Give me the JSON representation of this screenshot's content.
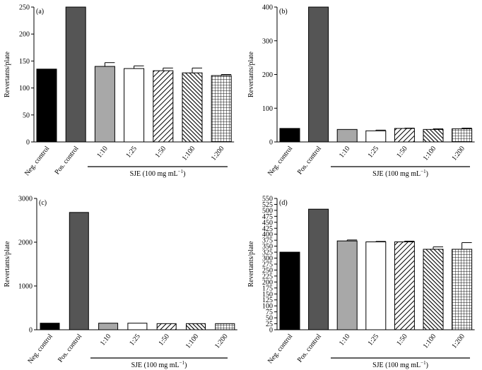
{
  "chart_data": [
    {
      "type": "bar",
      "panel_label": "(a)",
      "ylabel": "Revertants/plate",
      "ylim": [
        0,
        250
      ],
      "yticks": [
        0,
        50,
        100,
        150,
        200,
        250
      ],
      "categories": [
        "Neg. control",
        "Pos. control",
        "1:10",
        "1:25",
        "1:50",
        "1:100",
        "1:200"
      ],
      "values": [
        135,
        251,
        140,
        136,
        132,
        128,
        123
      ],
      "errors": [
        0,
        0,
        7,
        5,
        5,
        9,
        2
      ],
      "group_label": "SJE (100 mg mL",
      "group_label_sup": "−1",
      "group_label_end": ")"
    },
    {
      "type": "bar",
      "panel_label": "(b)",
      "ylabel": "Revertants/plate",
      "ylim": [
        0,
        400
      ],
      "yticks": [
        0,
        100,
        200,
        300,
        400
      ],
      "categories": [
        "Neg. control",
        "Pos. control",
        "1:10",
        "1:25",
        "1:50",
        "1:100",
        "1:200"
      ],
      "values": [
        40,
        401,
        37,
        33,
        40,
        37,
        39
      ],
      "errors": [
        0,
        0,
        0,
        2,
        1,
        2,
        2
      ],
      "group_label": "SJE (100 mg mL",
      "group_label_sup": "−1",
      "group_label_end": ")"
    },
    {
      "type": "bar",
      "panel_label": "(c)",
      "ylabel": "Revertants/plate",
      "ylim": [
        0,
        3000
      ],
      "yticks": [
        0,
        1000,
        2000,
        3000
      ],
      "categories": [
        "Neg. control",
        "Pos. control",
        "1:10",
        "1:25",
        "1:50",
        "1:100",
        "1:200"
      ],
      "values": [
        150,
        2680,
        150,
        150,
        140,
        140,
        140
      ],
      "errors": [
        0,
        0,
        0,
        0,
        0,
        0,
        0
      ],
      "group_label": "SJE (100 mg mL",
      "group_label_sup": "−1",
      "group_label_end": ")"
    },
    {
      "type": "bar",
      "panel_label": "(d)",
      "ylabel": "Revertants/plate",
      "ylim": [
        0,
        550
      ],
      "yticks": [
        0,
        25,
        50,
        75,
        100,
        125,
        150,
        175,
        200,
        225,
        250,
        275,
        300,
        325,
        350,
        375,
        400,
        425,
        450,
        475,
        500,
        525,
        550
      ],
      "categories": [
        "Neg. control",
        "Pos. control",
        "1:10",
        "1:25",
        "1:50",
        "1:100",
        "1:200"
      ],
      "values": [
        325,
        505,
        372,
        368,
        368,
        337,
        337
      ],
      "errors": [
        0,
        0,
        4,
        2,
        3,
        10,
        28
      ],
      "group_label": "SJE (100 mg mL",
      "group_label_sup": "−1",
      "group_label_end": ")"
    }
  ],
  "styles": {
    "fills": [
      "#000000",
      "#555555",
      "#a8a8a8",
      "#ffffff",
      "pattern-diag",
      "pattern-diag-dense",
      "pattern-grid"
    ],
    "stroke": "#000000"
  }
}
